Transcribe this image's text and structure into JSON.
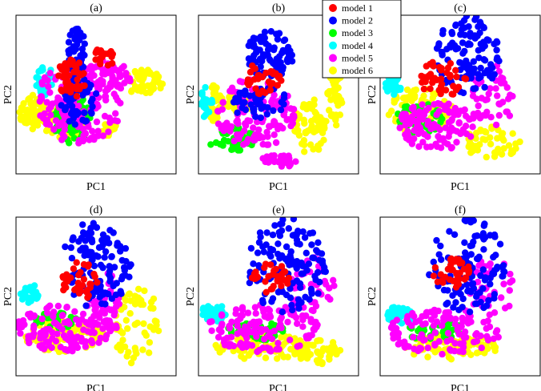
{
  "chart_data": {
    "type": "scatter",
    "layout": "2x3 grid of subplots",
    "x_ticks": "none",
    "y_ticks": "none",
    "grid": false,
    "legend": {
      "placement": "top-center, overlapping panels (b) and (c)",
      "entries": [
        {
          "name": "model 1",
          "color": "#ff0000"
        },
        {
          "name": "model 2",
          "color": "#0000ff"
        },
        {
          "name": "model 3",
          "color": "#00ff00"
        },
        {
          "name": "model 4",
          "color": "#00ffff"
        },
        {
          "name": "model 5",
          "color": "#ff00ff"
        },
        {
          "name": "model 6",
          "color": "#ffff00"
        }
      ]
    },
    "panels": [
      {
        "title": "(a)",
        "xlabel": "PC1",
        "ylabel": "PC2",
        "shape": "dense central cloud",
        "clusters": [
          {
            "series": "model 6",
            "cx": 0.1,
            "cy": 0.6,
            "rx": 0.08,
            "ry": 0.12,
            "n": 60
          },
          {
            "series": "model 6",
            "cx": 0.3,
            "cy": 0.68,
            "rx": 0.14,
            "ry": 0.1,
            "n": 45
          },
          {
            "series": "model 6",
            "cx": 0.8,
            "cy": 0.42,
            "rx": 0.13,
            "ry": 0.08,
            "n": 55
          },
          {
            "series": "model 6",
            "cx": 0.58,
            "cy": 0.72,
            "rx": 0.05,
            "ry": 0.05,
            "n": 15
          },
          {
            "series": "model 4",
            "cx": 0.18,
            "cy": 0.42,
            "rx": 0.06,
            "ry": 0.1,
            "n": 30
          },
          {
            "series": "model 3",
            "cx": 0.35,
            "cy": 0.65,
            "rx": 0.12,
            "ry": 0.16,
            "n": 55
          },
          {
            "series": "model 5",
            "cx": 0.4,
            "cy": 0.55,
            "rx": 0.28,
            "ry": 0.26,
            "n": 150
          },
          {
            "series": "model 5",
            "cx": 0.55,
            "cy": 0.38,
            "rx": 0.18,
            "ry": 0.1,
            "n": 50
          },
          {
            "series": "model 2",
            "cx": 0.38,
            "cy": 0.25,
            "rx": 0.06,
            "ry": 0.18,
            "n": 55
          },
          {
            "series": "model 2",
            "cx": 0.4,
            "cy": 0.55,
            "rx": 0.12,
            "ry": 0.15,
            "n": 55
          },
          {
            "series": "model 1",
            "cx": 0.35,
            "cy": 0.4,
            "rx": 0.1,
            "ry": 0.12,
            "n": 45
          },
          {
            "series": "model 1",
            "cx": 0.55,
            "cy": 0.26,
            "rx": 0.08,
            "ry": 0.06,
            "n": 20
          }
        ]
      },
      {
        "title": "(b)",
        "xlabel": "PC1",
        "ylabel": "PC2",
        "shape": "arcs and swirl",
        "clusters": [
          {
            "series": "model 6",
            "cx": 0.1,
            "cy": 0.55,
            "rx": 0.05,
            "ry": 0.12,
            "n": 35
          },
          {
            "series": "model 6",
            "cx": 0.25,
            "cy": 0.55,
            "rx": 0.12,
            "ry": 0.06,
            "n": 40
          },
          {
            "series": "model 6",
            "cx": 0.7,
            "cy": 0.7,
            "rx": 0.1,
            "ry": 0.18,
            "n": 55
          },
          {
            "series": "model 6",
            "cx": 0.85,
            "cy": 0.48,
            "rx": 0.05,
            "ry": 0.22,
            "n": 40
          },
          {
            "series": "model 4",
            "cx": 0.05,
            "cy": 0.55,
            "rx": 0.04,
            "ry": 0.1,
            "n": 25
          },
          {
            "series": "model 3",
            "cx": 0.2,
            "cy": 0.78,
            "rx": 0.15,
            "ry": 0.08,
            "n": 45
          },
          {
            "series": "model 5",
            "cx": 0.35,
            "cy": 0.62,
            "rx": 0.25,
            "ry": 0.22,
            "n": 120
          },
          {
            "series": "model 5",
            "cx": 0.5,
            "cy": 0.92,
            "rx": 0.12,
            "ry": 0.04,
            "n": 25
          },
          {
            "series": "model 2",
            "cx": 0.45,
            "cy": 0.25,
            "rx": 0.15,
            "ry": 0.15,
            "n": 80
          },
          {
            "series": "model 2",
            "cx": 0.38,
            "cy": 0.55,
            "rx": 0.18,
            "ry": 0.1,
            "n": 45
          },
          {
            "series": "model 1",
            "cx": 0.4,
            "cy": 0.4,
            "rx": 0.12,
            "ry": 0.1,
            "n": 35
          }
        ]
      },
      {
        "title": "(c)",
        "xlabel": "PC1",
        "ylabel": "PC2",
        "shape": "hook-shaped swirl",
        "clusters": [
          {
            "series": "model 2",
            "cx": 0.55,
            "cy": 0.25,
            "rx": 0.2,
            "ry": 0.25,
            "n": 110
          },
          {
            "series": "model 1",
            "cx": 0.4,
            "cy": 0.4,
            "rx": 0.15,
            "ry": 0.12,
            "n": 45
          },
          {
            "series": "model 4",
            "cx": 0.08,
            "cy": 0.45,
            "rx": 0.05,
            "ry": 0.08,
            "n": 30
          },
          {
            "series": "model 3",
            "cx": 0.25,
            "cy": 0.65,
            "rx": 0.15,
            "ry": 0.1,
            "n": 40
          },
          {
            "series": "model 5",
            "cx": 0.35,
            "cy": 0.7,
            "rx": 0.25,
            "ry": 0.15,
            "n": 110
          },
          {
            "series": "model 5",
            "cx": 0.7,
            "cy": 0.5,
            "rx": 0.15,
            "ry": 0.2,
            "n": 45
          },
          {
            "series": "model 6",
            "cx": 0.25,
            "cy": 0.6,
            "rx": 0.2,
            "ry": 0.15,
            "n": 80
          },
          {
            "series": "model 6",
            "cx": 0.7,
            "cy": 0.8,
            "rx": 0.18,
            "ry": 0.1,
            "n": 50
          }
        ]
      },
      {
        "title": "(d)",
        "xlabel": "PC1",
        "ylabel": "PC2",
        "shape": "hook-shaped swirl",
        "clusters": [
          {
            "series": "model 2",
            "cx": 0.5,
            "cy": 0.3,
            "rx": 0.22,
            "ry": 0.28,
            "n": 120
          },
          {
            "series": "model 1",
            "cx": 0.4,
            "cy": 0.4,
            "rx": 0.12,
            "ry": 0.12,
            "n": 35
          },
          {
            "series": "model 4",
            "cx": 0.08,
            "cy": 0.48,
            "rx": 0.06,
            "ry": 0.06,
            "n": 30
          },
          {
            "series": "model 3",
            "cx": 0.25,
            "cy": 0.65,
            "rx": 0.15,
            "ry": 0.05,
            "n": 30
          },
          {
            "series": "model 5",
            "cx": 0.3,
            "cy": 0.7,
            "rx": 0.3,
            "ry": 0.15,
            "n": 120
          },
          {
            "series": "model 5",
            "cx": 0.55,
            "cy": 0.55,
            "rx": 0.12,
            "ry": 0.2,
            "n": 45
          },
          {
            "series": "model 6",
            "cx": 0.3,
            "cy": 0.75,
            "rx": 0.25,
            "ry": 0.1,
            "n": 80
          },
          {
            "series": "model 6",
            "cx": 0.75,
            "cy": 0.68,
            "rx": 0.15,
            "ry": 0.25,
            "n": 60
          }
        ]
      },
      {
        "title": "(e)",
        "xlabel": "PC1",
        "ylabel": "PC2",
        "shape": "hook-shaped swirl",
        "clusters": [
          {
            "series": "model 2",
            "cx": 0.55,
            "cy": 0.3,
            "rx": 0.25,
            "ry": 0.3,
            "n": 130
          },
          {
            "series": "model 1",
            "cx": 0.45,
            "cy": 0.38,
            "rx": 0.12,
            "ry": 0.1,
            "n": 35
          },
          {
            "series": "model 4",
            "cx": 0.1,
            "cy": 0.6,
            "rx": 0.08,
            "ry": 0.06,
            "n": 40
          },
          {
            "series": "model 3",
            "cx": 0.35,
            "cy": 0.72,
            "rx": 0.2,
            "ry": 0.06,
            "n": 40
          },
          {
            "series": "model 5",
            "cx": 0.4,
            "cy": 0.7,
            "rx": 0.35,
            "ry": 0.15,
            "n": 130
          },
          {
            "series": "model 5",
            "cx": 0.7,
            "cy": 0.45,
            "rx": 0.15,
            "ry": 0.2,
            "n": 40
          },
          {
            "series": "model 6",
            "cx": 0.4,
            "cy": 0.82,
            "rx": 0.3,
            "ry": 0.08,
            "n": 80
          },
          {
            "series": "model 6",
            "cx": 0.75,
            "cy": 0.85,
            "rx": 0.15,
            "ry": 0.08,
            "n": 40
          }
        ]
      },
      {
        "title": "(f)",
        "xlabel": "PC1",
        "ylabel": "PC2",
        "shape": "hook-shaped swirl",
        "clusters": [
          {
            "series": "model 2",
            "cx": 0.55,
            "cy": 0.3,
            "rx": 0.25,
            "ry": 0.3,
            "n": 120
          },
          {
            "series": "model 1",
            "cx": 0.45,
            "cy": 0.35,
            "rx": 0.12,
            "ry": 0.1,
            "n": 35
          },
          {
            "series": "model 4",
            "cx": 0.12,
            "cy": 0.62,
            "rx": 0.08,
            "ry": 0.06,
            "n": 40
          },
          {
            "series": "model 3",
            "cx": 0.35,
            "cy": 0.72,
            "rx": 0.2,
            "ry": 0.06,
            "n": 35
          },
          {
            "series": "model 5",
            "cx": 0.4,
            "cy": 0.72,
            "rx": 0.35,
            "ry": 0.15,
            "n": 120
          },
          {
            "series": "model 5",
            "cx": 0.7,
            "cy": 0.45,
            "rx": 0.15,
            "ry": 0.2,
            "n": 40
          },
          {
            "series": "model 6",
            "cx": 0.45,
            "cy": 0.82,
            "rx": 0.3,
            "ry": 0.08,
            "n": 80
          }
        ]
      }
    ]
  }
}
